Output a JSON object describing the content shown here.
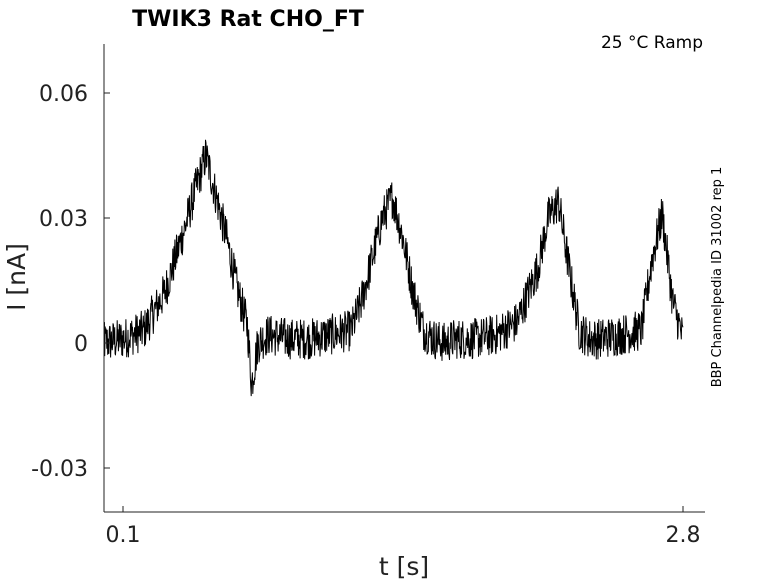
{
  "chart_data": {
    "type": "line",
    "title": "TWIK3  Rat  CHO_FT",
    "annotation": "25 °C  Ramp",
    "side_label": "BBP Channelpedia ID 31002 rep 1",
    "xlabel": "t [s]",
    "ylabel": "I [nA]",
    "xlim": [
      0.0,
      2.8
    ],
    "ylim": [
      -0.04,
      0.075
    ],
    "xticks": [
      0.1,
      2.8
    ],
    "xtick_labels": [
      "0.1",
      "2.8"
    ],
    "yticks": [
      -0.03,
      0,
      0.03,
      0.06
    ],
    "ytick_labels": [
      "-0.03",
      "0",
      "0.03",
      "0.06"
    ],
    "grid": false,
    "series": [
      {
        "x": [
          0.0,
          0.1,
          0.2,
          0.3,
          0.35,
          0.4,
          0.45,
          0.5,
          0.55,
          0.6,
          0.65,
          0.7,
          0.72,
          0.75,
          0.8,
          0.9,
          1.0,
          1.1,
          1.2,
          1.25,
          1.3,
          1.35,
          1.4,
          1.45,
          1.5,
          1.55,
          1.6,
          1.65,
          1.7,
          1.8,
          1.9,
          2.0,
          2.1,
          2.15,
          2.2,
          2.25,
          2.3,
          2.35,
          2.4,
          2.5,
          2.6,
          2.65,
          2.7,
          2.75,
          2.8
        ],
        "y": [
          0.0,
          0.001,
          0.003,
          0.012,
          0.02,
          0.028,
          0.037,
          0.045,
          0.035,
          0.025,
          0.013,
          0.004,
          -0.01,
          0.0,
          0.002,
          0.001,
          0.001,
          0.002,
          0.003,
          0.01,
          0.02,
          0.03,
          0.035,
          0.025,
          0.012,
          0.003,
          0.001,
          0.0,
          0.001,
          0.001,
          0.002,
          0.005,
          0.018,
          0.03,
          0.034,
          0.018,
          0.003,
          0.001,
          0.001,
          0.002,
          0.003,
          0.02,
          0.031,
          0.01,
          0.001
        ],
        "noise": 0.005
      }
    ]
  }
}
